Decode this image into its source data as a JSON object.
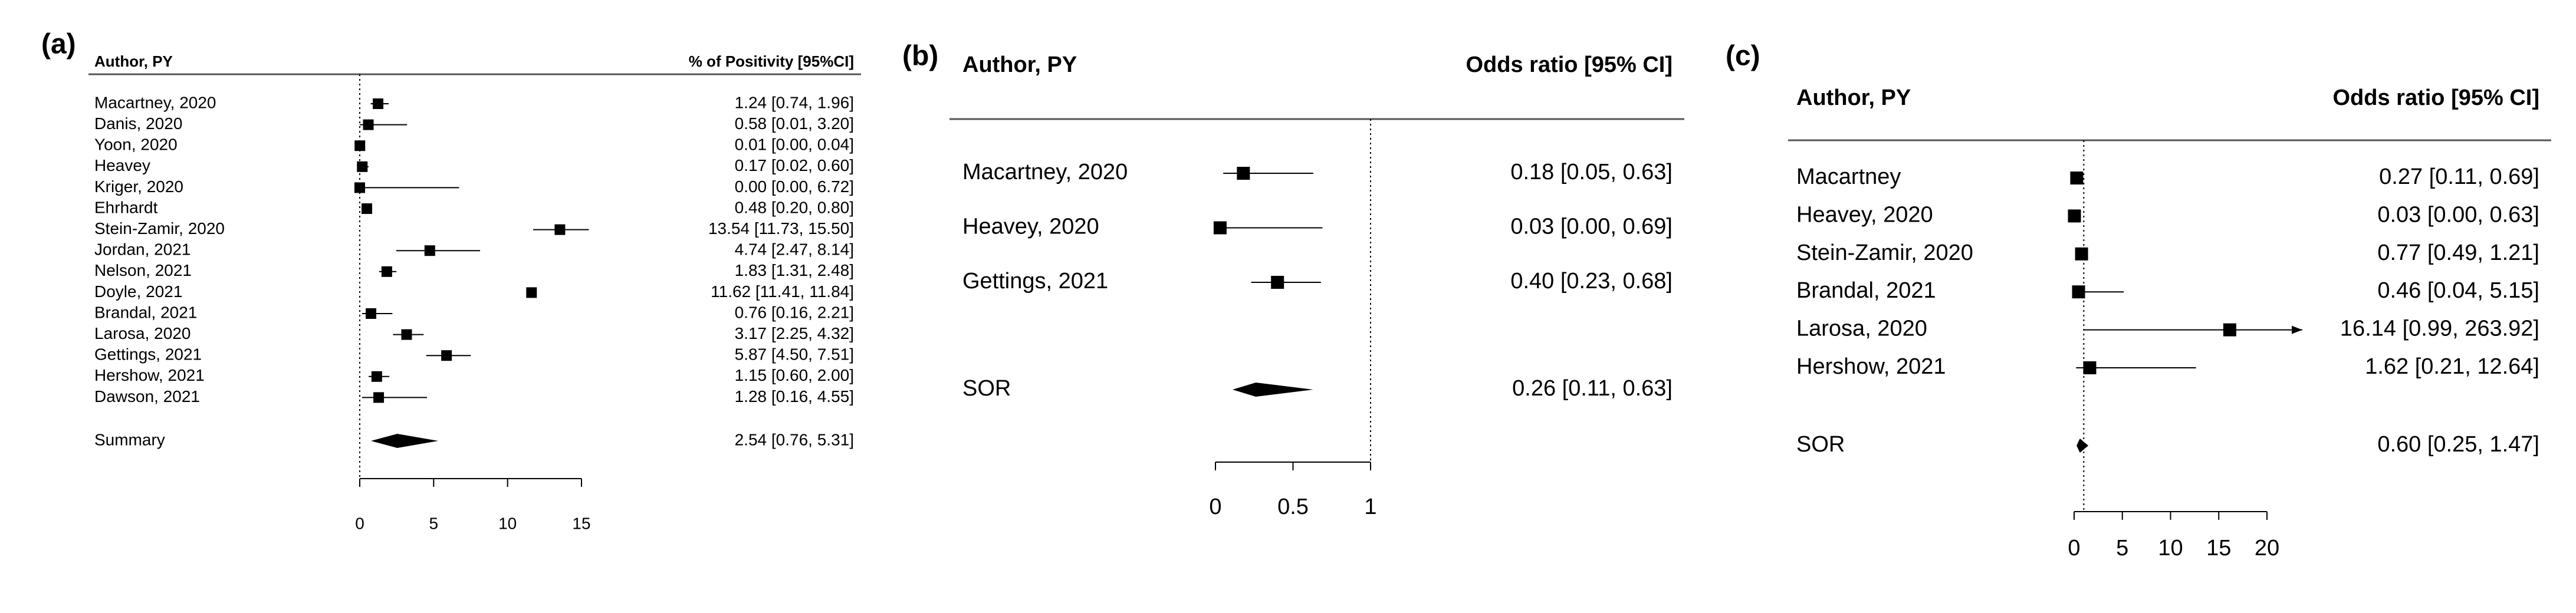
{
  "chart_data": [
    {
      "type": "forest",
      "label": "(a)",
      "columns": [
        "Author, PY",
        "% of Positivity [95%CI]"
      ],
      "studies": [
        "Macartney, 2020",
        "Danis, 2020",
        "Yoon, 2020",
        "Heavey",
        "Kriger, 2020",
        "Ehrhardt",
        "Stein-Zamir, 2020",
        "Jordan, 2021",
        "Nelson, 2021",
        "Doyle, 2021",
        "Brandal, 2021",
        "Larosa, 2020",
        "Gettings, 2021",
        "Hershow, 2021",
        "Dawson, 2021"
      ],
      "values": [
        1.24,
        0.58,
        0.01,
        0.17,
        0.0,
        0.48,
        13.54,
        4.74,
        1.83,
        11.62,
        0.76,
        3.17,
        5.87,
        1.15,
        1.28
      ],
      "lower": [
        0.74,
        0.01,
        0.0,
        0.02,
        0.0,
        0.2,
        11.73,
        2.47,
        1.31,
        11.41,
        0.16,
        2.25,
        4.5,
        0.6,
        0.16
      ],
      "upper": [
        1.96,
        3.2,
        0.04,
        0.6,
        6.72,
        0.8,
        15.5,
        8.14,
        2.48,
        11.84,
        2.21,
        4.32,
        7.51,
        2.0,
        4.55
      ],
      "value_labels": [
        "1.24 [0.74, 1.96]",
        "0.58 [0.01, 3.20]",
        "0.01 [0.00, 0.04]",
        "0.17 [0.02, 0.60]",
        "0.00 [0.00, 6.72]",
        "0.48 [0.20, 0.80]",
        "13.54 [11.73, 15.50]",
        "4.74 [2.47, 8.14]",
        "1.83 [1.31, 2.48]",
        "11.62 [11.41, 11.84]",
        "0.76 [0.16, 2.21]",
        "3.17 [2.25, 4.32]",
        "5.87 [4.50, 7.51]",
        "1.15 [0.60, 2.00]",
        "1.28 [0.16, 4.55]"
      ],
      "summary": {
        "name": "Summary",
        "value": 2.54,
        "lower": 0.76,
        "upper": 5.31,
        "value_label": "2.54 [0.76, 5.31]"
      },
      "xlim": [
        0,
        15
      ],
      "xticks": [
        0,
        5,
        10,
        15
      ],
      "reference_line": 0
    },
    {
      "type": "forest",
      "label": "(b)",
      "columns": [
        "Author, PY",
        "Odds ratio [95%  CI]"
      ],
      "studies": [
        "Macartney, 2020",
        "Heavey, 2020",
        "Gettings, 2021"
      ],
      "values": [
        0.18,
        0.03,
        0.4
      ],
      "lower": [
        0.05,
        0.0,
        0.23
      ],
      "upper": [
        0.63,
        0.69,
        0.68
      ],
      "value_labels": [
        "0.18 [0.05, 0.63]",
        "0.03 [0.00, 0.69]",
        "0.40 [0.23, 0.68]"
      ],
      "summary": {
        "name": "SOR",
        "value": 0.26,
        "lower": 0.11,
        "upper": 0.63,
        "value_label": "0.26 [0.11, 0.63]"
      },
      "xlim": [
        0,
        1
      ],
      "xticks": [
        0,
        0.5,
        1
      ],
      "reference_line": 1
    },
    {
      "type": "forest",
      "label": "(c)",
      "columns": [
        "Author, PY",
        "Odds ratio [95%  CI]"
      ],
      "studies": [
        "Macartney",
        "Heavey, 2020",
        "Stein-Zamir, 2020",
        "Brandal, 2021",
        "Larosa, 2020",
        "Hershow, 2021"
      ],
      "values": [
        0.27,
        0.03,
        0.77,
        0.46,
        16.14,
        1.62
      ],
      "lower": [
        0.11,
        0.0,
        0.49,
        0.04,
        0.99,
        0.21
      ],
      "upper": [
        0.69,
        0.63,
        1.21,
        5.15,
        263.92,
        12.64
      ],
      "value_labels": [
        "0.27 [0.11, 0.69]",
        "0.03 [0.00, 0.63]",
        "0.77 [0.49, 1.21]",
        "0.46 [0.04, 5.15]",
        "16.14 [0.99, 263.92]",
        "1.62 [0.21, 12.64]"
      ],
      "summary": {
        "name": "SOR",
        "value": 0.6,
        "lower": 0.25,
        "upper": 1.47,
        "value_label": "0.60 [0.25, 1.47]"
      },
      "xlim": [
        0,
        20
      ],
      "xticks": [
        0,
        5,
        10,
        15,
        20
      ],
      "reference_line": 1
    }
  ]
}
